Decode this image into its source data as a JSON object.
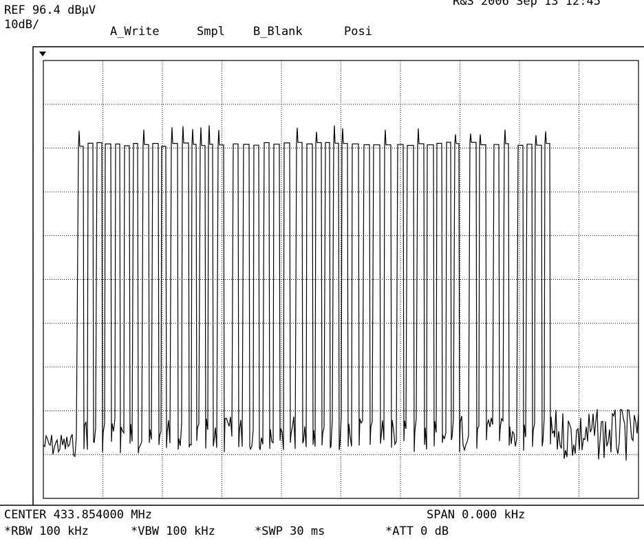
{
  "header": {
    "reference": "REF 96.4 dBµV",
    "scale": "10dB/",
    "trace_a": "A_Write",
    "detector": "Smpl",
    "trace_b": "B_Blank",
    "mode": "Posi",
    "timestamp": "R&S 2006 Sep 13 12:45"
  },
  "footer": {
    "center": "CENTER 433.854000 MHz",
    "span": "SPAN 0.000 kHz",
    "rbw": "*RBW 100 kHz",
    "vbw": "*VBW 100 kHz",
    "sweep": "*SWP 30 ms",
    "attenuation": "*ATT 0 dB"
  }
}
